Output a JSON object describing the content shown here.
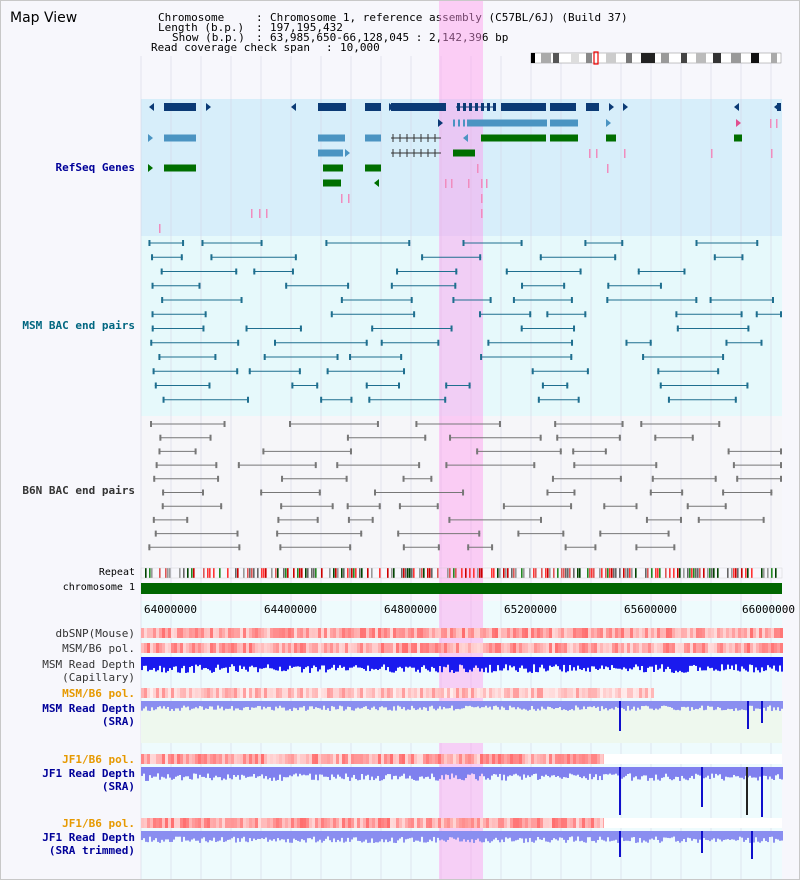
{
  "header": {
    "title": "Map View",
    "chromosome_label": "Chromosome",
    "chromosome_value": "Chromosome 1, reference assembly (C57BL/6J) (Build 37)",
    "length_label": "Length (b.p.)",
    "length_value": "197,195,432",
    "show_label": "Show (b.p.)",
    "show_value": "63,985,650-66,128,045 : 2,142,396 bp",
    "coverage_label": "Read coverage check span",
    "coverage_value": "10,000"
  },
  "tracks": {
    "refseq": "RefSeq Genes",
    "msm_bac": "MSM BAC end pairs",
    "b6n_bac": "B6N BAC end pairs",
    "repeat": "Repeat",
    "chromosome": "chromosome 1",
    "dbsnp": "dbSNP(Mouse)",
    "msm_b6_pol_1": "MSM/B6 pol.",
    "msm_read_depth_cap_1": "MSM Read Depth",
    "msm_read_depth_cap_2": "(Capillary)",
    "msm_b6_pol_2": "MSM/B6 pol.",
    "msm_read_depth_sra_1": "MSM Read Depth",
    "msm_read_depth_sra_2": "(SRA)",
    "jf1_b6_pol_1": "JF1/B6 pol.",
    "jf1_read_depth_sra_1": "JF1 Read Depth",
    "jf1_read_depth_sra_2": "(SRA)",
    "jf1_b6_pol_2": "JF1/B6 pol.",
    "jf1_read_depth_trim_1": "JF1 Read Depth",
    "jf1_read_depth_trim_2": "(SRA trimmed)"
  },
  "axis": {
    "ticks": [
      "64000000",
      "64400000",
      "64800000",
      "65200000",
      "65600000",
      "66000000"
    ]
  },
  "colors": {
    "highlight": "#ff99ee",
    "refseq_bg": "#d7eefa",
    "msm_bg": "#e6f9fb",
    "b6n_bg": "#f6f6f9",
    "chromosome_bar": "#006600",
    "gene_dark": "#0b3a75",
    "gene_mid": "#4b94c2",
    "gene_green": "#006f00",
    "msm_line": "#1f6f8f",
    "b6n_line": "#777777",
    "label_blue": "#000099",
    "label_teal": "#006680",
    "label_orange": "#e69900",
    "label_gray": "#333333"
  }
}
